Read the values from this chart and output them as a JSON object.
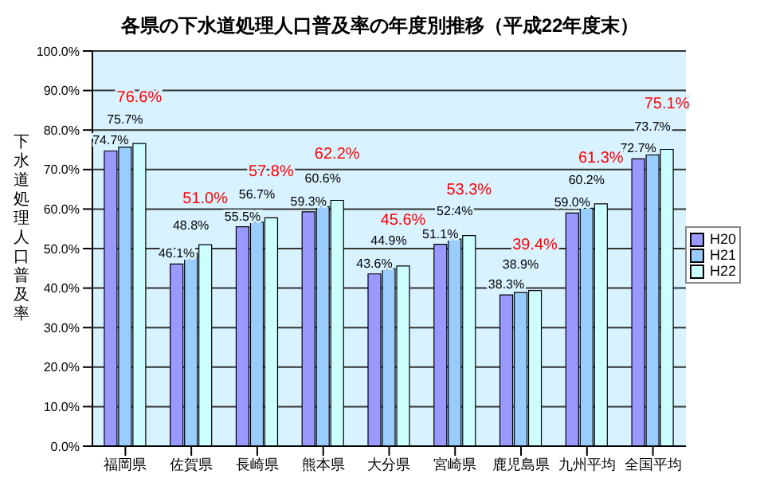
{
  "chart_data": {
    "type": "bar",
    "title": "各県の下水道処理人口普及率の年度別推移（平成22年度末）",
    "ylabel": "下水道処理人口普及率",
    "categories": [
      "福岡県",
      "佐賀県",
      "長崎県",
      "熊本県",
      "大分県",
      "宮崎県",
      "鹿児島県",
      "九州平均",
      "全国平均"
    ],
    "series": [
      {
        "name": "H20",
        "color": "#9999ff",
        "values": [
          74.7,
          46.1,
          55.5,
          59.3,
          43.6,
          51.1,
          38.3,
          59.0,
          72.7
        ],
        "value_labels": [
          "74.7%",
          "46.1%",
          "55.5%",
          "59.3%",
          "43.6%",
          "51.1%",
          "38.3%",
          "59.0%",
          "72.7%"
        ]
      },
      {
        "name": "H21",
        "color": "#99ccff",
        "values": [
          75.7,
          48.8,
          56.7,
          60.6,
          44.9,
          52.4,
          38.9,
          60.2,
          73.7
        ],
        "value_labels": [
          "75.7%",
          "48.8%",
          "56.7%",
          "60.6%",
          "44.9%",
          "52.4%",
          "38.9%",
          "60.2%",
          "73.7%"
        ]
      },
      {
        "name": "H22",
        "color": "#ccffff",
        "values": [
          76.6,
          51.0,
          57.8,
          62.2,
          45.6,
          53.3,
          39.4,
          61.3,
          75.1
        ],
        "value_labels": [
          "76.6%",
          "51.0%",
          "57.8%",
          "62.2%",
          "45.6%",
          "53.3%",
          "39.4%",
          "61.3%",
          "75.1%"
        ]
      }
    ],
    "ylim": [
      0,
      100
    ],
    "yticks": [
      {
        "value": 0,
        "label": "0.0%"
      },
      {
        "value": 10,
        "label": "10.0%"
      },
      {
        "value": 20,
        "label": "20.0%"
      },
      {
        "value": 30,
        "label": "30.0%"
      },
      {
        "value": 40,
        "label": "40.0%"
      },
      {
        "value": 50,
        "label": "50.0%"
      },
      {
        "value": 60,
        "label": "60.0%"
      },
      {
        "value": 70,
        "label": "70.0%"
      },
      {
        "value": 80,
        "label": "80.0%"
      },
      {
        "value": 90,
        "label": "90.0%"
      },
      {
        "value": 100,
        "label": "100.0%"
      }
    ],
    "grid": "y",
    "legend": "right"
  }
}
